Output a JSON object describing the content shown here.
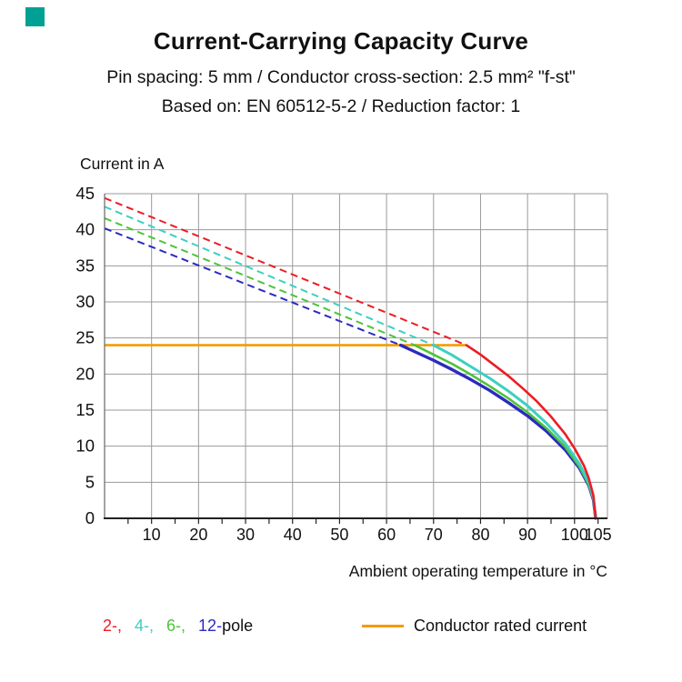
{
  "brand": {
    "color": "#00a094"
  },
  "header": {
    "title": "Current-Carrying Capacity Curve",
    "subtitle1": "Pin spacing: 5 mm / Conductor cross-section: 2.5 mm² \"f-st\"",
    "subtitle2": "Based on: EN 60512-5-2 / Reduction factor: 1"
  },
  "chart_data": {
    "type": "line",
    "title": "Current-Carrying Capacity Curve",
    "ylabel": "Current in A",
    "xlabel": "Ambient operating temperature in °C",
    "x_max": 107,
    "y_max": 45,
    "x_ticks": [
      10,
      20,
      30,
      40,
      50,
      60,
      70,
      80,
      90,
      100,
      105
    ],
    "y_ticks": [
      0,
      5,
      10,
      15,
      20,
      25,
      30,
      35,
      40,
      45
    ],
    "x_grid": [
      10,
      20,
      30,
      40,
      50,
      60,
      70,
      80,
      90,
      100
    ],
    "grid": true,
    "grid_color": "#9a9a9a",
    "axis_color": "#222222",
    "legend_position": "bottom",
    "rated_current": {
      "value": 24,
      "x_start": 0,
      "x_end": 77,
      "color": "#f59b00"
    },
    "series": [
      {
        "name": "2-pole",
        "color": "#ed1c24",
        "width": 2.6,
        "dashed": [
          [
            0,
            44.4
          ],
          [
            77,
            24
          ]
        ],
        "solid": [
          [
            77,
            24
          ],
          [
            80,
            22.7
          ],
          [
            83,
            21.2
          ],
          [
            86,
            19.7
          ],
          [
            89,
            18.0
          ],
          [
            92,
            16.2
          ],
          [
            95,
            14.1
          ],
          [
            98,
            11.7
          ],
          [
            100,
            9.7
          ],
          [
            102,
            7.3
          ],
          [
            103,
            5.6
          ],
          [
            104,
            3.2
          ],
          [
            104.5,
            0
          ]
        ]
      },
      {
        "name": "4-pole",
        "color": "#3ecfc1",
        "width": 3.0,
        "dashed": [
          [
            0,
            43.2
          ],
          [
            70,
            24
          ]
        ],
        "solid": [
          [
            70,
            24
          ],
          [
            74,
            22.6
          ],
          [
            78,
            21.0
          ],
          [
            82,
            19.4
          ],
          [
            86,
            17.6
          ],
          [
            90,
            15.6
          ],
          [
            94,
            13.2
          ],
          [
            98,
            10.4
          ],
          [
            101,
            7.6
          ],
          [
            103,
            5.0
          ],
          [
            104,
            2.9
          ],
          [
            104.5,
            0
          ]
        ]
      },
      {
        "name": "6-pole",
        "color": "#4cc43b",
        "width": 2.6,
        "dashed": [
          [
            0,
            41.6
          ],
          [
            66,
            24
          ]
        ],
        "solid": [
          [
            66,
            24
          ],
          [
            70,
            22.7
          ],
          [
            74,
            21.4
          ],
          [
            78,
            19.9
          ],
          [
            82,
            18.3
          ],
          [
            86,
            16.6
          ],
          [
            90,
            14.7
          ],
          [
            94,
            12.5
          ],
          [
            98,
            9.9
          ],
          [
            101,
            7.2
          ],
          [
            103,
            4.7
          ],
          [
            104,
            2.7
          ],
          [
            104.5,
            0
          ]
        ]
      },
      {
        "name": "12-pole",
        "color": "#2b2bbf",
        "width": 3.4,
        "dashed": [
          [
            0,
            40.2
          ],
          [
            63,
            24
          ]
        ],
        "solid": [
          [
            63,
            24
          ],
          [
            66,
            23.1
          ],
          [
            70,
            21.9
          ],
          [
            74,
            20.6
          ],
          [
            78,
            19.2
          ],
          [
            82,
            17.7
          ],
          [
            86,
            16.0
          ],
          [
            90,
            14.2
          ],
          [
            94,
            12.1
          ],
          [
            98,
            9.5
          ],
          [
            101,
            7.0
          ],
          [
            103,
            4.6
          ],
          [
            104,
            2.6
          ],
          [
            104.5,
            0
          ]
        ]
      }
    ]
  },
  "legend": {
    "items": [
      {
        "name": "2-pole",
        "label": "2-,",
        "color": "#ed1c24"
      },
      {
        "name": "4-pole",
        "label": "4-,",
        "color": "#3ecfc1"
      },
      {
        "name": "6-pole",
        "label": "6-,",
        "color": "#4cc43b"
      },
      {
        "name": "12-pole",
        "label": "12-",
        "color": "#2b2bbf"
      }
    ],
    "pole_suffix": "pole",
    "rated_label": "Conductor rated current"
  }
}
